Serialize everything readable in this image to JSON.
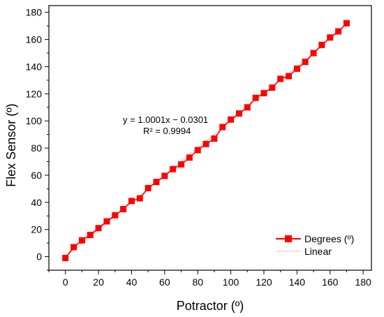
{
  "chart_data": {
    "type": "line",
    "xlabel": "Potractor (º)",
    "ylabel": "Flex Sensor (º)",
    "xlim": [
      -10,
      185
    ],
    "ylim": [
      -10,
      185
    ],
    "xticks": [
      0,
      20,
      40,
      60,
      80,
      100,
      120,
      140,
      160,
      180
    ],
    "yticks": [
      0,
      20,
      40,
      60,
      80,
      100,
      120,
      140,
      160,
      180
    ],
    "grid": false,
    "legend_position": "bottom-right",
    "series": [
      {
        "name": "Degrees (º)",
        "color": "#ff0000",
        "marker": "square",
        "x": [
          0,
          5,
          10,
          15,
          20,
          25,
          30,
          35,
          40,
          45,
          50,
          55,
          60,
          65,
          70,
          75,
          80,
          85,
          90,
          95,
          100,
          105,
          110,
          115,
          120,
          125,
          130,
          135,
          140,
          145,
          150,
          155,
          160,
          165,
          170
        ],
        "y": [
          -1,
          7,
          12,
          16,
          21,
          26,
          30.5,
          35,
          41,
          43,
          50.5,
          55,
          59.5,
          64.5,
          68,
          73,
          78.5,
          83,
          87,
          95.5,
          101,
          105.5,
          110,
          117,
          120.5,
          124.5,
          131,
          133,
          138.5,
          143.5,
          150,
          156,
          161.5,
          166,
          172
        ]
      },
      {
        "name": "Linear",
        "color": "#f4b8b8",
        "fit": {
          "slope": 1.0001,
          "intercept": -0.0301
        }
      }
    ],
    "annotations": {
      "equation": "y = 1.0001x − 0.0301",
      "r_squared": "R² = 0.9994"
    }
  }
}
